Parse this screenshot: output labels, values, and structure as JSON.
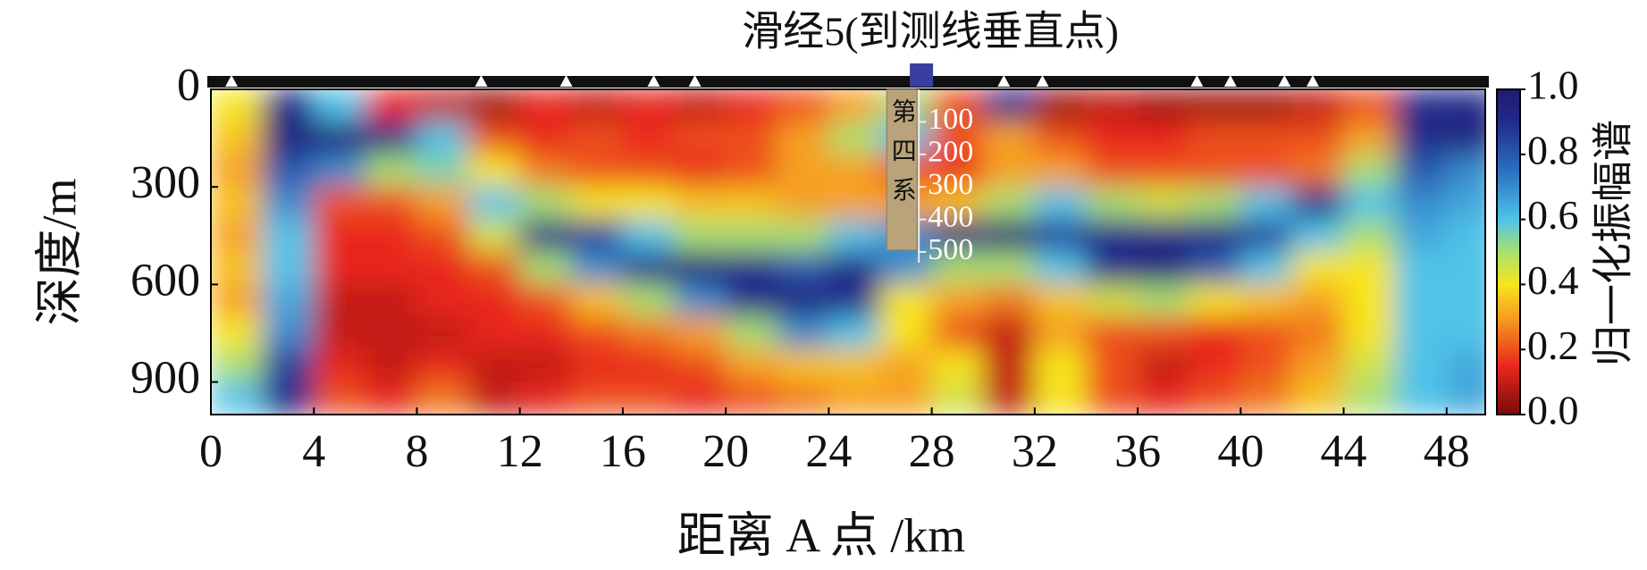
{
  "chart_data": {
    "type": "heatmap",
    "annotation": {
      "text": "滑经5(到测线垂直点)",
      "x": 27.6,
      "color": "#3a3ea0"
    },
    "xlabel": "距离 A 点 /km",
    "ylabel": "深度/m",
    "colorbar_label": "归一化振幅谱",
    "xlim": [
      0,
      49.5
    ],
    "ylim": [
      0,
      1000
    ],
    "xticks": [
      0,
      4,
      8,
      12,
      16,
      20,
      24,
      28,
      32,
      36,
      40,
      44,
      48
    ],
    "yticks": [
      0,
      300,
      600,
      900
    ],
    "clim": [
      0,
      1
    ],
    "cticks": [
      {
        "value": 0,
        "label": "0.0"
      },
      {
        "value": 0.2,
        "label": "0.2"
      },
      {
        "value": 0.4,
        "label": "0.4"
      },
      {
        "value": 0.6,
        "label": "0.6"
      },
      {
        "value": 0.8,
        "label": "0.8"
      },
      {
        "value": 1,
        "label": "1.0"
      }
    ],
    "colorscale": [
      [
        0,
        "#7a0a0a"
      ],
      [
        0.15,
        "#e8281e"
      ],
      [
        0.3,
        "#f6a020"
      ],
      [
        0.4,
        "#f7e51e"
      ],
      [
        0.5,
        "#a8e070"
      ],
      [
        0.6,
        "#4fc3e8"
      ],
      [
        0.75,
        "#2b6fc0"
      ],
      [
        0.9,
        "#232a8a"
      ],
      [
        1,
        "#1f1a6e"
      ]
    ],
    "stations": [
      0.8,
      10.5,
      13.8,
      17.2,
      18.8,
      30.8,
      32.3,
      38.3,
      39.6,
      41.7,
      42.8
    ],
    "inset": {
      "label": "第四系",
      "x": 27.5,
      "ticks": [
        100,
        200,
        300,
        400,
        500
      ]
    },
    "x": [
      1,
      3,
      5,
      7,
      9,
      11,
      13,
      15,
      17,
      19,
      21,
      23,
      25,
      27,
      29,
      31,
      33,
      35,
      37,
      39,
      41,
      43,
      45,
      47,
      49
    ],
    "y": [
      50,
      150,
      250,
      350,
      450,
      550,
      650,
      750,
      850,
      950
    ],
    "z": [
      [
        0.4,
        0.9,
        0.6,
        0.15,
        0.1,
        0.05,
        0.15,
        0.1,
        0.15,
        0.1,
        0.15,
        0.2,
        0.3,
        0.5,
        0.2,
        0.9,
        0.05,
        0.1,
        0.05,
        0.05,
        0.05,
        0.1,
        0.2,
        0.9,
        0.9
      ],
      [
        0.35,
        0.95,
        0.95,
        0.9,
        0.6,
        0.2,
        0.15,
        0.2,
        0.15,
        0.2,
        0.2,
        0.3,
        0.5,
        0.6,
        0.2,
        0.3,
        0.2,
        0.15,
        0.15,
        0.2,
        0.2,
        0.2,
        0.3,
        0.9,
        0.95
      ],
      [
        0.3,
        0.8,
        0.7,
        0.5,
        0.55,
        0.4,
        0.25,
        0.2,
        0.2,
        0.15,
        0.2,
        0.3,
        0.3,
        0.2,
        0.15,
        0.3,
        0.3,
        0.2,
        0.2,
        0.2,
        0.2,
        0.25,
        0.5,
        0.8,
        0.7
      ],
      [
        0.35,
        0.7,
        0.2,
        0.2,
        0.3,
        0.6,
        0.5,
        0.4,
        0.4,
        0.35,
        0.35,
        0.3,
        0.3,
        0.3,
        0.35,
        0.5,
        0.6,
        0.5,
        0.45,
        0.5,
        0.6,
        0.9,
        0.6,
        0.7,
        0.65
      ],
      [
        0.3,
        0.6,
        0.15,
        0.15,
        0.2,
        0.45,
        0.9,
        0.85,
        0.6,
        0.5,
        0.5,
        0.5,
        0.6,
        0.7,
        0.9,
        0.95,
        0.85,
        0.9,
        0.9,
        0.9,
        0.85,
        0.6,
        0.5,
        0.65,
        0.6
      ],
      [
        0.35,
        0.6,
        0.15,
        0.15,
        0.15,
        0.2,
        0.5,
        0.7,
        0.9,
        0.95,
        0.9,
        0.8,
        0.9,
        0.7,
        0.5,
        0.5,
        0.6,
        0.9,
        0.95,
        0.8,
        0.6,
        0.4,
        0.4,
        0.6,
        0.6
      ],
      [
        0.3,
        0.65,
        0.1,
        0.1,
        0.15,
        0.15,
        0.2,
        0.35,
        0.5,
        0.7,
        0.9,
        0.95,
        0.9,
        0.4,
        0.3,
        0.25,
        0.35,
        0.45,
        0.5,
        0.4,
        0.35,
        0.3,
        0.4,
        0.6,
        0.6
      ],
      [
        0.4,
        0.7,
        0.1,
        0.1,
        0.1,
        0.15,
        0.15,
        0.2,
        0.25,
        0.3,
        0.5,
        0.7,
        0.6,
        0.4,
        0.2,
        0.1,
        0.3,
        0.2,
        0.2,
        0.15,
        0.2,
        0.25,
        0.4,
        0.6,
        0.6
      ],
      [
        0.5,
        0.85,
        0.15,
        0.1,
        0.15,
        0.1,
        0.1,
        0.15,
        0.15,
        0.2,
        0.3,
        0.35,
        0.35,
        0.3,
        0.4,
        0.1,
        0.4,
        0.2,
        0.1,
        0.15,
        0.2,
        0.3,
        0.45,
        0.6,
        0.65
      ],
      [
        0.6,
        0.9,
        0.2,
        0.15,
        0.25,
        0.1,
        0.15,
        0.2,
        0.2,
        0.15,
        0.2,
        0.25,
        0.3,
        0.3,
        0.45,
        0.1,
        0.4,
        0.2,
        0.15,
        0.2,
        0.25,
        0.35,
        0.5,
        0.6,
        0.65
      ]
    ]
  }
}
